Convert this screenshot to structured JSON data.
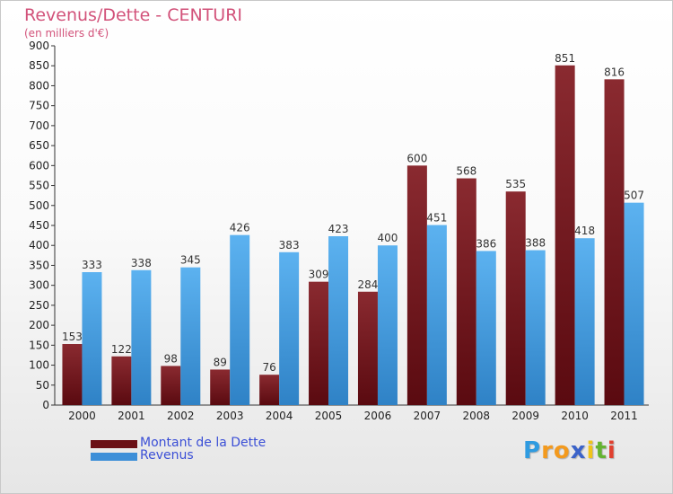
{
  "header": {
    "title": "Revenus/Dette - CENTURI",
    "subtitle": "(en milliers d'€)"
  },
  "chart_data": {
    "type": "bar",
    "categories": [
      "2000",
      "2001",
      "2002",
      "2003",
      "2004",
      "2005",
      "2006",
      "2007",
      "2008",
      "2009",
      "2010",
      "2011"
    ],
    "series": [
      {
        "name": "Montant de la Dette",
        "values": [
          153,
          122,
          98,
          89,
          76,
          309,
          284,
          600,
          568,
          535,
          851,
          816
        ],
        "color": "#7a1e24"
      },
      {
        "name": "Revenus",
        "values": [
          333,
          338,
          345,
          426,
          383,
          423,
          400,
          451,
          386,
          388,
          418,
          507
        ],
        "color": "#4aa3e6"
      }
    ],
    "ylim": [
      0,
      900
    ],
    "yticks": [
      0,
      50,
      100,
      150,
      200,
      250,
      300,
      350,
      400,
      450,
      500,
      550,
      600,
      650,
      700,
      750,
      800,
      850,
      900
    ],
    "grid": false,
    "legend_position": "bottom-left"
  },
  "legend": {
    "items": [
      {
        "label": "Montant de la Dette",
        "color": "#6b1016"
      },
      {
        "label": "Revenus",
        "color": "#3d8fd8"
      }
    ]
  },
  "logo": {
    "letters": [
      {
        "ch": "P",
        "color": "#2f9be0"
      },
      {
        "ch": "r",
        "color": "#f39a1e"
      },
      {
        "ch": "o",
        "color": "#f39a1e"
      },
      {
        "ch": "x",
        "color": "#3b63c9"
      },
      {
        "ch": "i",
        "color": "#f0c419"
      },
      {
        "ch": "t",
        "color": "#64b331"
      },
      {
        "ch": "i",
        "color": "#e0402f"
      }
    ]
  }
}
